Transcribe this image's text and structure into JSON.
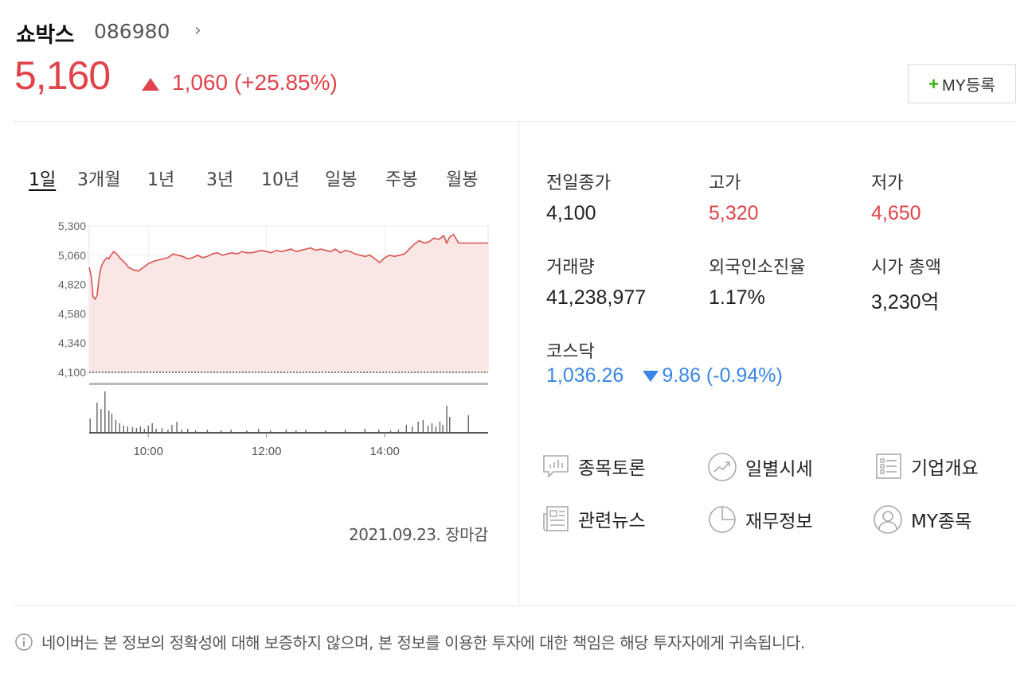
{
  "stock": {
    "name": "쇼박스",
    "code": "086980",
    "price": "5,160",
    "change": "1,060 (+25.85%)",
    "my_button_label": "MY등록"
  },
  "tabs": [
    {
      "label": "1일",
      "active": true
    },
    {
      "label": "3개월",
      "active": false
    },
    {
      "label": "1년",
      "active": false
    },
    {
      "label": "3년",
      "active": false
    },
    {
      "label": "10년",
      "active": false
    },
    {
      "label": "일봉",
      "active": false
    },
    {
      "label": "주봉",
      "active": false
    },
    {
      "label": "월봉",
      "active": false
    }
  ],
  "chart_data": {
    "type": "line",
    "ylim": [
      4100,
      5300
    ],
    "yticks": [
      "5,300",
      "5,060",
      "4,820",
      "4,580",
      "4,340",
      "4,100"
    ],
    "ytick_values": [
      5300,
      5060,
      4820,
      4580,
      4340,
      4100
    ],
    "xticks": [
      "10:00",
      "12:00",
      "14:00"
    ],
    "xtick_values": [
      600,
      720,
      840
    ],
    "xlim": [
      540,
      945
    ],
    "previous_close": 4100,
    "series": [
      {
        "x": [
          540,
          542,
          544,
          546,
          548,
          550,
          552,
          554,
          556,
          558,
          560,
          562,
          565,
          568,
          572,
          576,
          580,
          585,
          590,
          595,
          600,
          605,
          610,
          615,
          620,
          625,
          630,
          635,
          640,
          645,
          650,
          655,
          660,
          665,
          670,
          675,
          680,
          685,
          690,
          695,
          700,
          705,
          710,
          715,
          720,
          725,
          730,
          735,
          740,
          745,
          750,
          755,
          760,
          765,
          770,
          775,
          780,
          785,
          790,
          795,
          800,
          805,
          810,
          815,
          820,
          825,
          830,
          835,
          840,
          845,
          850,
          855,
          860,
          865,
          870,
          875,
          880,
          885,
          890,
          895,
          900,
          903,
          906,
          910,
          915,
          920,
          925,
          930,
          935,
          940,
          945
        ],
        "y": [
          4960,
          4890,
          4720,
          4700,
          4730,
          4870,
          4960,
          5000,
          5020,
          5040,
          5030,
          5060,
          5090,
          5070,
          5030,
          5000,
          4960,
          4940,
          4930,
          4960,
          4990,
          5010,
          5020,
          5030,
          5040,
          5070,
          5060,
          5050,
          5030,
          5040,
          5060,
          5040,
          5050,
          5070,
          5080,
          5060,
          5070,
          5080,
          5070,
          5090,
          5080,
          5080,
          5090,
          5100,
          5090,
          5080,
          5100,
          5090,
          5100,
          5110,
          5090,
          5100,
          5110,
          5120,
          5100,
          5110,
          5100,
          5090,
          5110,
          5080,
          5100,
          5090,
          5070,
          5060,
          5050,
          5060,
          5030,
          5000,
          5040,
          5060,
          5050,
          5060,
          5070,
          5110,
          5150,
          5180,
          5160,
          5170,
          5200,
          5190,
          5220,
          5160,
          5210,
          5230,
          5160,
          5160,
          5160,
          5160,
          5160,
          5160,
          5160
        ]
      }
    ],
    "volume": [
      {
        "x": 541,
        "v": 18
      },
      {
        "x": 548,
        "v": 38
      },
      {
        "x": 552,
        "v": 30
      },
      {
        "x": 556,
        "v": 52
      },
      {
        "x": 560,
        "v": 28
      },
      {
        "x": 563,
        "v": 24
      },
      {
        "x": 567,
        "v": 16
      },
      {
        "x": 571,
        "v": 12
      },
      {
        "x": 575,
        "v": 9
      },
      {
        "x": 579,
        "v": 8
      },
      {
        "x": 584,
        "v": 7
      },
      {
        "x": 588,
        "v": 6
      },
      {
        "x": 592,
        "v": 8
      },
      {
        "x": 596,
        "v": 5
      },
      {
        "x": 600,
        "v": 9
      },
      {
        "x": 604,
        "v": 12
      },
      {
        "x": 608,
        "v": 5
      },
      {
        "x": 614,
        "v": 6
      },
      {
        "x": 620,
        "v": 4
      },
      {
        "x": 624,
        "v": 10
      },
      {
        "x": 629,
        "v": 14
      },
      {
        "x": 634,
        "v": 4
      },
      {
        "x": 640,
        "v": 5
      },
      {
        "x": 648,
        "v": 3
      },
      {
        "x": 660,
        "v": 4
      },
      {
        "x": 674,
        "v": 3
      },
      {
        "x": 684,
        "v": 4
      },
      {
        "x": 700,
        "v": 3
      },
      {
        "x": 712,
        "v": 5
      },
      {
        "x": 724,
        "v": 3
      },
      {
        "x": 740,
        "v": 4
      },
      {
        "x": 750,
        "v": 3
      },
      {
        "x": 760,
        "v": 4
      },
      {
        "x": 780,
        "v": 3
      },
      {
        "x": 800,
        "v": 4
      },
      {
        "x": 820,
        "v": 5
      },
      {
        "x": 834,
        "v": 4
      },
      {
        "x": 846,
        "v": 3
      },
      {
        "x": 854,
        "v": 4
      },
      {
        "x": 862,
        "v": 10
      },
      {
        "x": 868,
        "v": 8
      },
      {
        "x": 874,
        "v": 14
      },
      {
        "x": 879,
        "v": 16
      },
      {
        "x": 884,
        "v": 9
      },
      {
        "x": 888,
        "v": 12
      },
      {
        "x": 892,
        "v": 8
      },
      {
        "x": 896,
        "v": 14
      },
      {
        "x": 899,
        "v": 10
      },
      {
        "x": 903,
        "v": 34
      },
      {
        "x": 906,
        "v": 20
      },
      {
        "x": 925,
        "v": 22
      }
    ],
    "footer": "2021.09.23. 장마감"
  },
  "stats": {
    "prev_close": {
      "label": "전일종가",
      "value": "4,100"
    },
    "high": {
      "label": "고가",
      "value": "5,320"
    },
    "low": {
      "label": "저가",
      "value": "4,650"
    },
    "volume": {
      "label": "거래량",
      "value": "41,238,977"
    },
    "foreign_ratio": {
      "label": "외국인소진율",
      "value": "1.17%"
    },
    "market_cap": {
      "label": "시가 총액",
      "value": "3,230억"
    },
    "kosdaq": {
      "label": "코스닥",
      "value": "1,036.26",
      "change": "9.86 (-0.94%)"
    }
  },
  "links": {
    "discussion": "종목토론",
    "daily_price": "일별시세",
    "company": "기업개요",
    "news": "관련뉴스",
    "financials": "재무정보",
    "my_stocks": "MY종목"
  },
  "disclaimer": "네이버는 본 정보의 정확성에 대해 보증하지 않으며, 본 정보를 이용한 투자에 대한 책임은 해당 투자자에게 귀속됩니다.",
  "colors": {
    "up": "#e0434a",
    "down": "#3a86e8",
    "chart_fill": "#fbe6e6",
    "accent_green": "#2db400"
  }
}
